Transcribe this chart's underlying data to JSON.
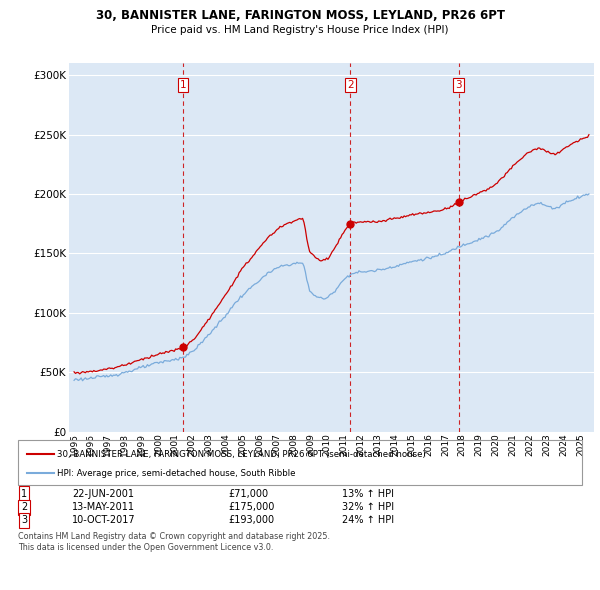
{
  "title_line1": "30, BANNISTER LANE, FARINGTON MOSS, LEYLAND, PR26 6PT",
  "title_line2": "Price paid vs. HM Land Registry's House Price Index (HPI)",
  "legend_line1": "30, BANNISTER LANE, FARINGTON MOSS, LEYLAND, PR26 6PT (semi-detached house)",
  "legend_line2": "HPI: Average price, semi-detached house, South Ribble",
  "footer": "Contains HM Land Registry data © Crown copyright and database right 2025.\nThis data is licensed under the Open Government Licence v3.0.",
  "sale_info": [
    {
      "label": "1",
      "date": "22-JUN-2001",
      "price": "£71,000",
      "pct": "13% ↑ HPI"
    },
    {
      "label": "2",
      "date": "13-MAY-2011",
      "price": "£175,000",
      "pct": "32% ↑ HPI"
    },
    {
      "label": "3",
      "date": "10-OCT-2017",
      "price": "£193,000",
      "pct": "24% ↑ HPI"
    }
  ],
  "price_line_color": "#cc0000",
  "hpi_line_color": "#7aabdb",
  "background_color": "#dce8f5",
  "grid_color": "#ffffff",
  "vline_color": "#cc0000",
  "ylim": [
    0,
    310000
  ],
  "yticks": [
    0,
    50000,
    100000,
    150000,
    200000,
    250000,
    300000
  ],
  "sale_year_floats": [
    2001.47,
    2011.37,
    2017.78
  ],
  "sale_prices_actual": [
    71000,
    175000,
    193000
  ]
}
